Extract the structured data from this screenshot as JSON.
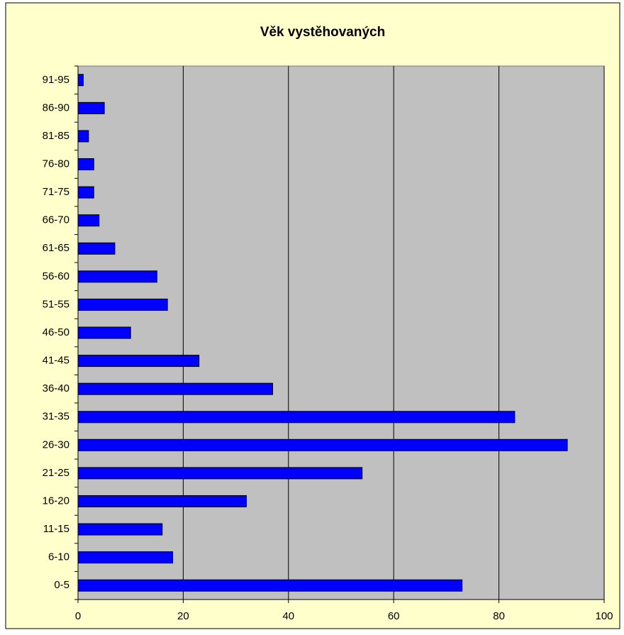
{
  "chart_data": {
    "type": "barh",
    "title": "Věk vystěhovaných",
    "categories": [
      "0-5",
      "6-10",
      "11-15",
      "16-20",
      "21-25",
      "26-30",
      "31-35",
      "36-40",
      "41-45",
      "46-50",
      "51-55",
      "56-60",
      "61-65",
      "66-70",
      "71-75",
      "76-80",
      "81-85",
      "86-90",
      "91-95"
    ],
    "values": [
      73,
      18,
      16,
      32,
      54,
      93,
      83,
      37,
      23,
      10,
      17,
      15,
      7,
      4,
      3,
      3,
      2,
      5,
      1
    ],
    "color": "#0000ff",
    "xlim": [
      0,
      100
    ],
    "xticks": [
      0,
      20,
      40,
      60,
      80,
      100
    ],
    "grid": true
  }
}
